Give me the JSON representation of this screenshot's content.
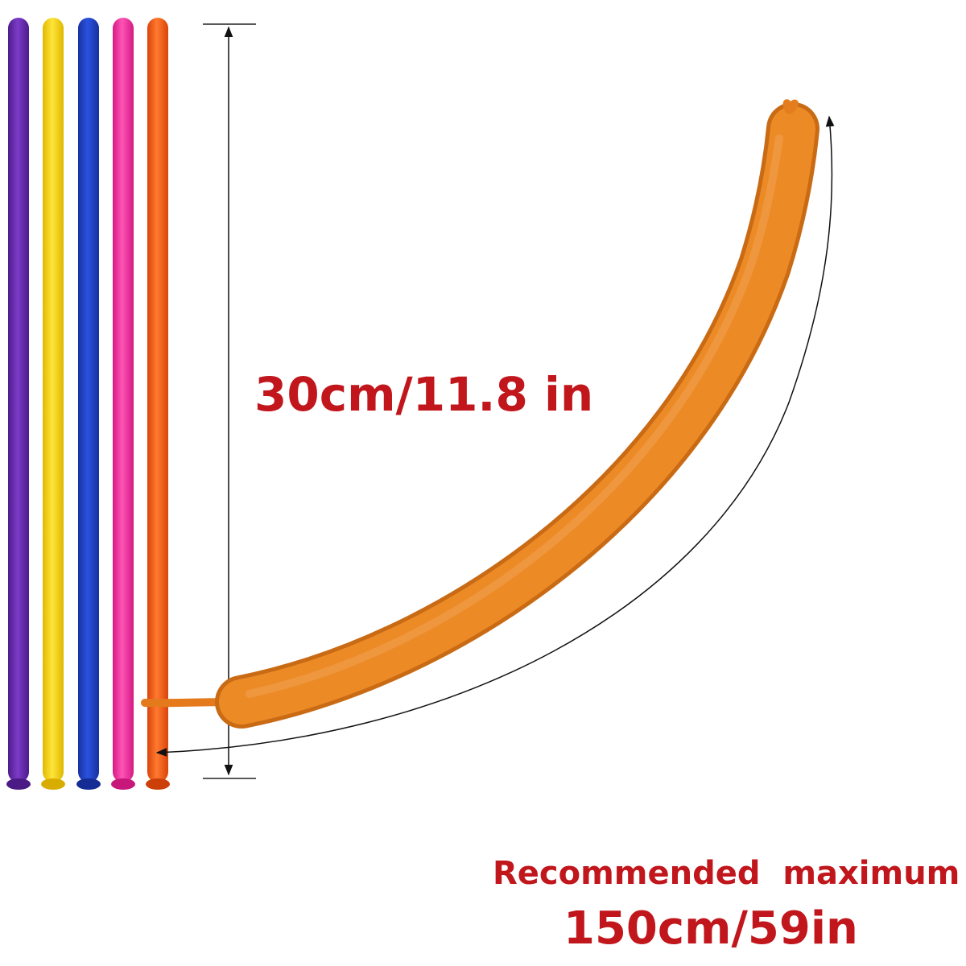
{
  "product": {
    "uninflated_colors": [
      {
        "name": "purple",
        "color": "#6a2db3"
      },
      {
        "name": "yellow",
        "color": "#f7d40e"
      },
      {
        "name": "blue",
        "color": "#1f3fc4"
      },
      {
        "name": "pink",
        "color": "#f22e9c"
      },
      {
        "name": "orange",
        "color": "#f45a14"
      }
    ],
    "inflated_color": "#e8821f",
    "text_color": "#c0161c"
  },
  "labels": {
    "uninflated_length": "30cm/11.8 in",
    "recommended_line1": "Recommended  maximum",
    "recommended_line2": "150cm/59in"
  }
}
